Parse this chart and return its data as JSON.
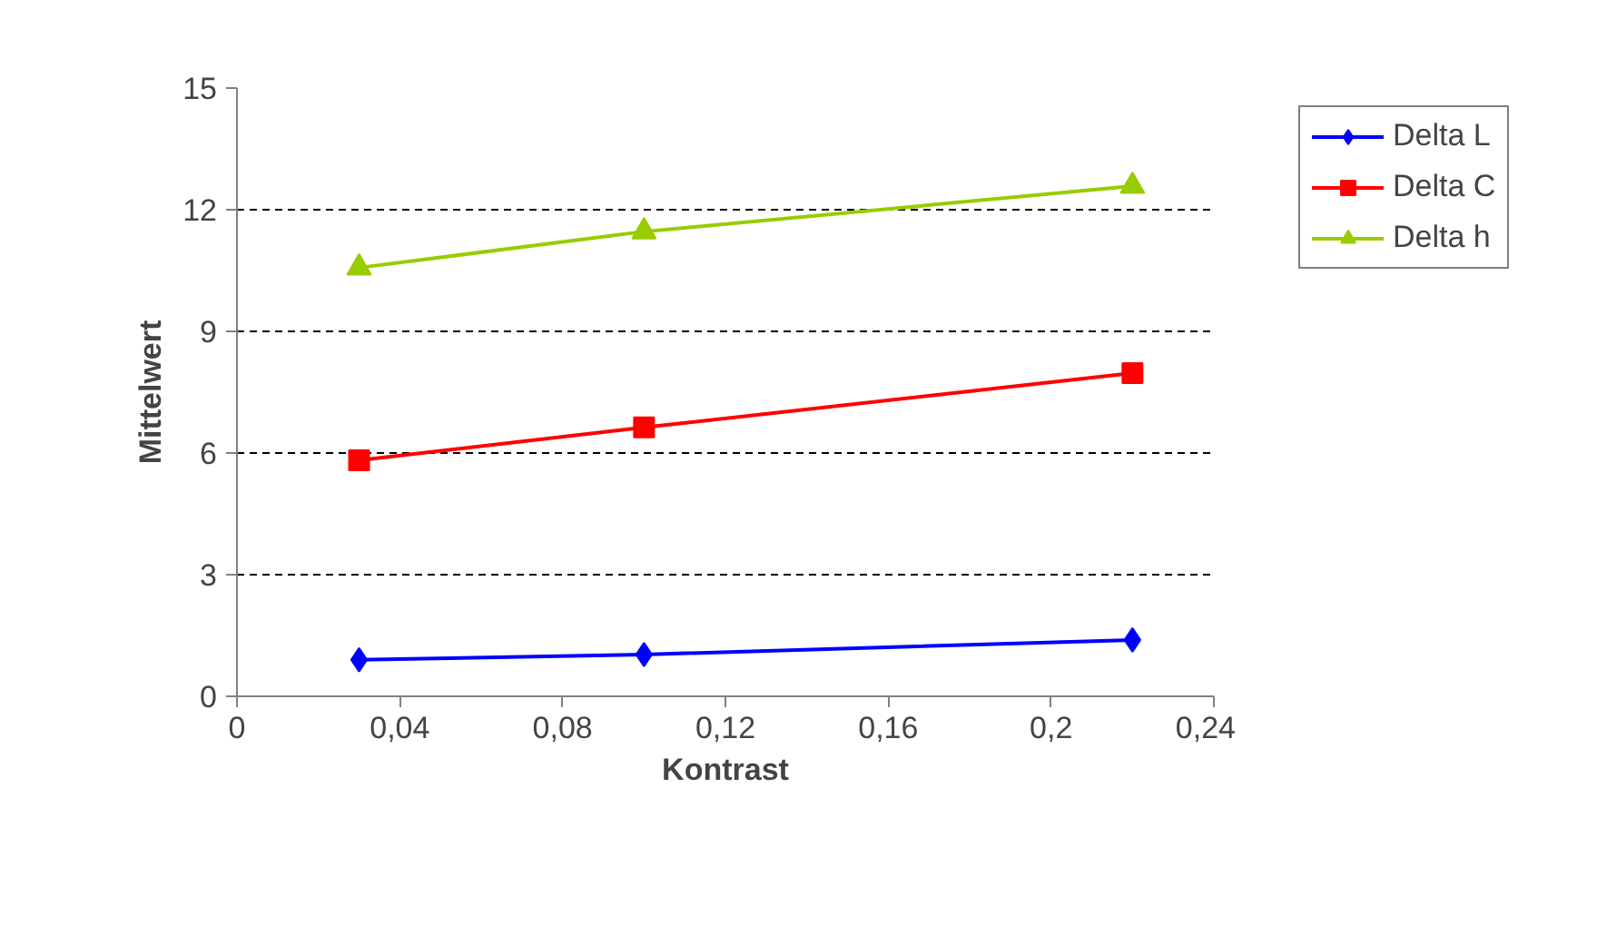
{
  "chart_data": {
    "type": "line",
    "xlabel": "Kontrast",
    "ylabel": "Mittelwert",
    "x": [
      0.03,
      0.1,
      0.22
    ],
    "series": [
      {
        "name": "Delta L",
        "color": "#0000ff",
        "marker": "diamond",
        "values": [
          0.9,
          1.03,
          1.39
        ]
      },
      {
        "name": "Delta C",
        "color": "#ff0000",
        "marker": "square",
        "values": [
          5.82,
          6.63,
          7.97
        ]
      },
      {
        "name": "Delta h",
        "color": "#99cc00",
        "marker": "triangle",
        "values": [
          10.57,
          11.46,
          12.58
        ]
      }
    ],
    "xlim": [
      0,
      0.24
    ],
    "ylim": [
      0,
      15
    ],
    "xticks": [
      0,
      {
        "value": 0.04,
        "label": "0,04"
      },
      {
        "value": 0.08,
        "label": "0,08"
      },
      {
        "value": 0.12,
        "label": "0,12"
      },
      {
        "value": 0.16,
        "label": "0,16"
      },
      {
        "value": 0.2,
        "label": "0,2"
      },
      {
        "value": 0.24,
        "label": "0,24"
      }
    ],
    "yticks": [
      0,
      3,
      6,
      9,
      12,
      15
    ],
    "grid": "y",
    "legend": "right",
    "line_style": "solid"
  }
}
